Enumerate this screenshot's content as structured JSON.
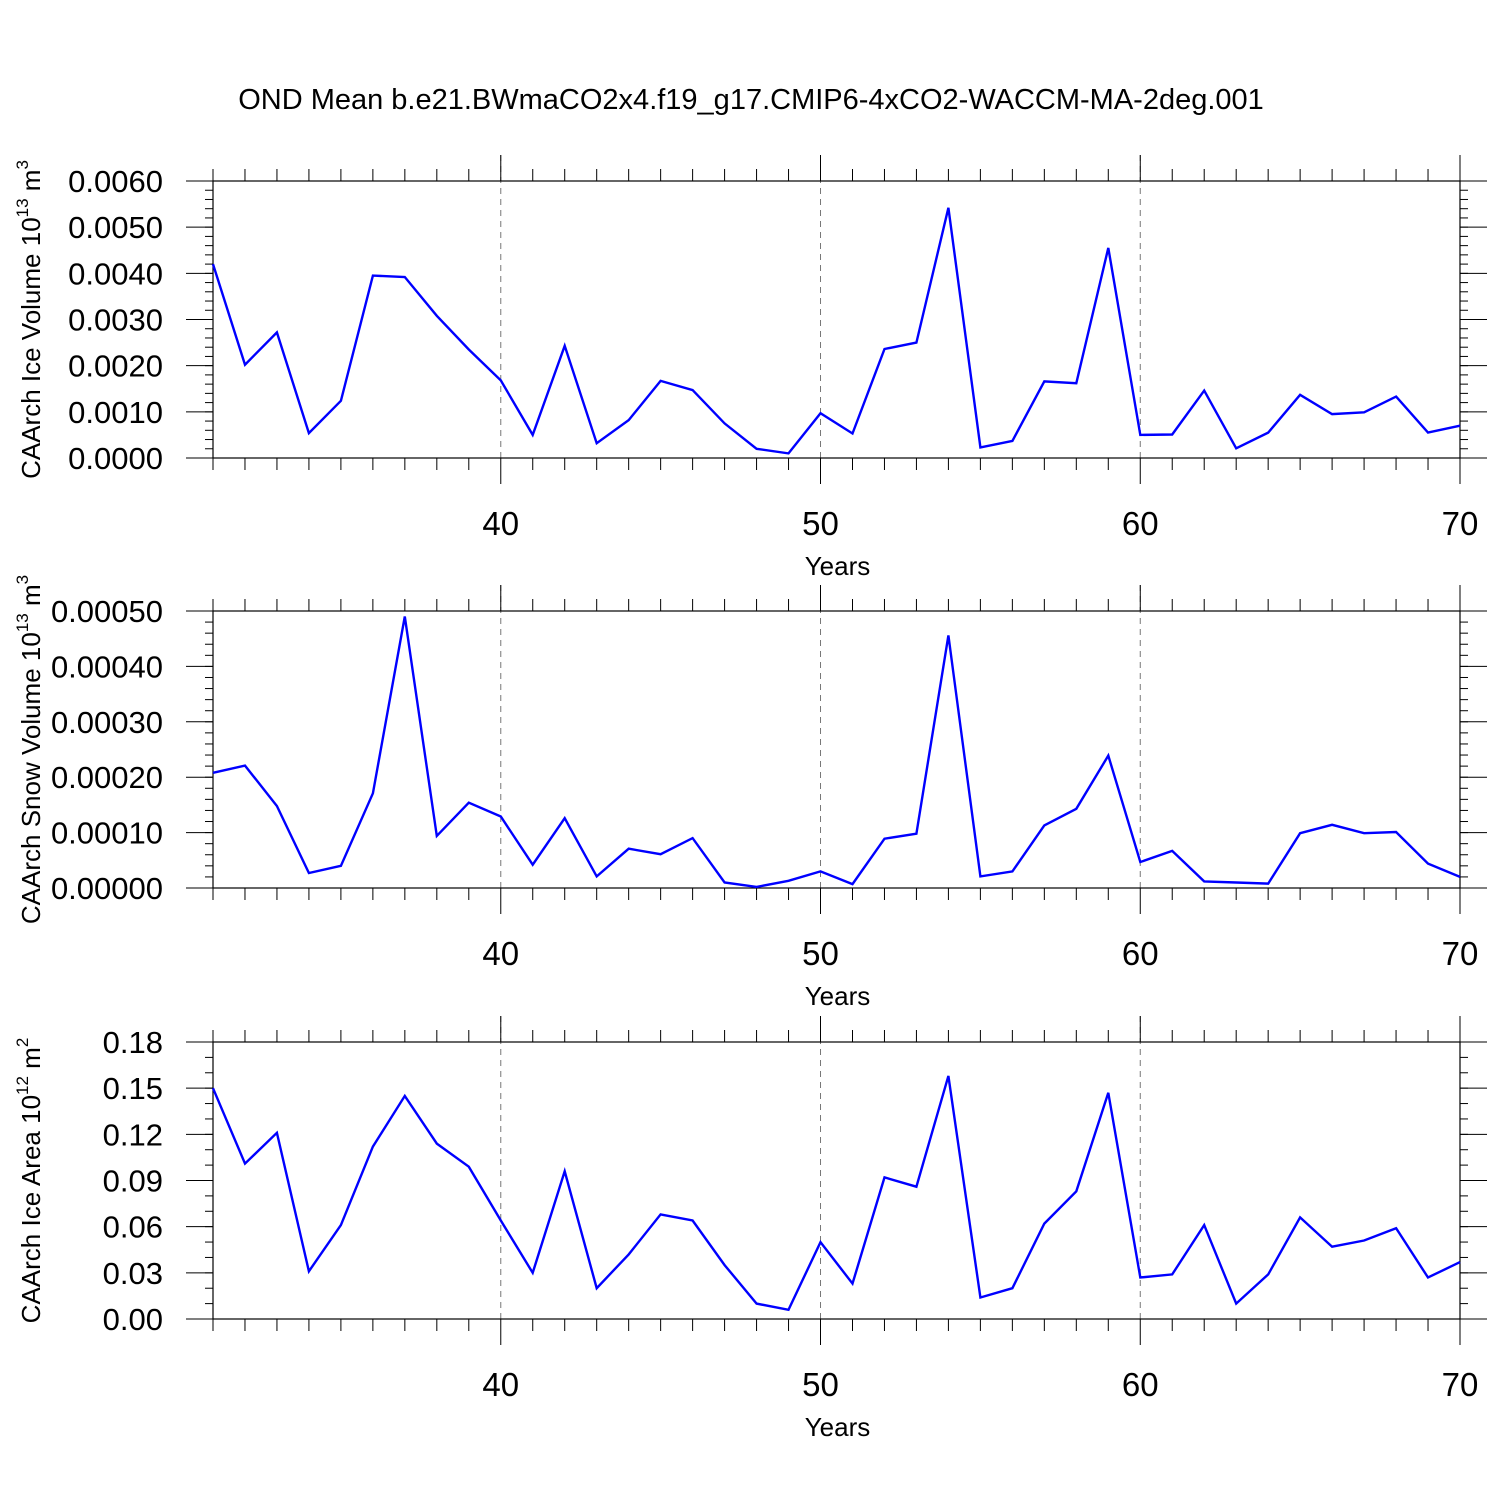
{
  "title": "OND Mean b.e21.BWmaCO2x4.f19_g17.CMIP6-4xCO2-WACCM-MA-2deg.001",
  "colors": {
    "line": "#0000ff",
    "axis": "#000000",
    "grid": "#777777"
  },
  "chart_data": [
    {
      "type": "line",
      "name": "ice-volume",
      "xlabel": "Years",
      "ylabel_main": "CAArch Ice Volume 10",
      "ylabel_sup": "13",
      "ylabel_unit": " m",
      "ylabel_unit_sup": "3",
      "xlim": [
        31,
        70
      ],
      "ylim": [
        0,
        0.006
      ],
      "xticks": [
        40,
        50,
        60,
        70
      ],
      "xtick_labels": [
        "40",
        "50",
        "60",
        "70"
      ],
      "grid_x": [
        40,
        50,
        60
      ],
      "yticks": [
        0,
        0.001,
        0.002,
        0.003,
        0.004,
        0.005,
        0.006
      ],
      "ytick_labels": [
        "0.0000",
        "0.0010",
        "0.0020",
        "0.0030",
        "0.0040",
        "0.0050",
        "0.0060"
      ],
      "minor_step": 0.0002,
      "x": [
        31,
        32,
        33,
        34,
        35,
        36,
        37,
        38,
        39,
        40,
        41,
        42,
        43,
        44,
        45,
        46,
        47,
        48,
        49,
        50,
        51,
        52,
        53,
        54,
        55,
        56,
        57,
        58,
        59,
        60,
        61,
        62,
        63,
        64,
        65,
        66,
        67,
        68,
        69,
        70
      ],
      "values": [
        0.0042,
        0.00202,
        0.00272,
        0.00054,
        0.00124,
        0.00395,
        0.00392,
        0.00308,
        0.00235,
        0.00168,
        0.0005,
        0.00243,
        0.00032,
        0.00082,
        0.00167,
        0.00147,
        0.00075,
        0.0002,
        0.0001,
        0.00097,
        0.00053,
        0.00236,
        0.0025,
        0.00542,
        0.00023,
        0.00037,
        0.00166,
        0.00162,
        0.00455,
        0.0005,
        0.00051,
        0.00146,
        0.00021,
        0.00055,
        0.00137,
        0.00095,
        0.00099,
        0.00133,
        0.00055,
        0.0007
      ]
    },
    {
      "type": "line",
      "name": "snow-volume",
      "xlabel": "Years",
      "ylabel_main": "CAArch Snow Volume 10",
      "ylabel_sup": "13",
      "ylabel_unit": " m",
      "ylabel_unit_sup": "3",
      "xlim": [
        31,
        70
      ],
      "ylim": [
        0,
        0.0005
      ],
      "xticks": [
        40,
        50,
        60,
        70
      ],
      "xtick_labels": [
        "40",
        "50",
        "60",
        "70"
      ],
      "grid_x": [
        40,
        50,
        60
      ],
      "yticks": [
        0,
        0.0001,
        0.0002,
        0.0003,
        0.0004,
        0.0005
      ],
      "ytick_labels": [
        "0.00000",
        "0.00010",
        "0.00020",
        "0.00030",
        "0.00040",
        "0.00050"
      ],
      "minor_step": 2e-05,
      "x": [
        31,
        32,
        33,
        34,
        35,
        36,
        37,
        38,
        39,
        40,
        41,
        42,
        43,
        44,
        45,
        46,
        47,
        48,
        49,
        50,
        51,
        52,
        53,
        54,
        55,
        56,
        57,
        58,
        59,
        60,
        61,
        62,
        63,
        64,
        65,
        66,
        67,
        68,
        69,
        70
      ],
      "values": [
        0.000208,
        0.000221,
        0.000148,
        2.7e-05,
        4e-05,
        0.000171,
        0.00049,
        9.4e-05,
        0.000154,
        0.000129,
        4.2e-05,
        0.000126,
        2.1e-05,
        7.1e-05,
        6.1e-05,
        9e-05,
        1e-05,
        2e-06,
        1.3e-05,
        3e-05,
        7e-06,
        8.9e-05,
        9.8e-05,
        0.000456,
        2.1e-05,
        3e-05,
        0.000113,
        0.000143,
        0.000239,
        4.7e-05,
        6.7e-05,
        1.2e-05,
        1e-05,
        8e-06,
        9.9e-05,
        0.000114,
        9.9e-05,
        0.000101,
        4.4e-05,
        2e-05
      ]
    },
    {
      "type": "line",
      "name": "ice-area",
      "xlabel": "Years",
      "ylabel_main": "CAArch Ice Area 10",
      "ylabel_sup": "12",
      "ylabel_unit": " m",
      "ylabel_unit_sup": "2",
      "xlim": [
        31,
        70
      ],
      "ylim": [
        0,
        0.18
      ],
      "xticks": [
        40,
        50,
        60,
        70
      ],
      "xtick_labels": [
        "40",
        "50",
        "60",
        "70"
      ],
      "grid_x": [
        40,
        50,
        60
      ],
      "yticks": [
        0,
        0.03,
        0.06,
        0.09,
        0.12,
        0.15,
        0.18
      ],
      "ytick_labels": [
        "0.00",
        "0.03",
        "0.06",
        "0.09",
        "0.12",
        "0.15",
        "0.18"
      ],
      "minor_step": 0.01,
      "x": [
        31,
        32,
        33,
        34,
        35,
        36,
        37,
        38,
        39,
        40,
        41,
        42,
        43,
        44,
        45,
        46,
        47,
        48,
        49,
        50,
        51,
        52,
        53,
        54,
        55,
        56,
        57,
        58,
        59,
        60,
        61,
        62,
        63,
        64,
        65,
        66,
        67,
        68,
        69,
        70
      ],
      "values": [
        0.15,
        0.101,
        0.121,
        0.031,
        0.061,
        0.112,
        0.145,
        0.114,
        0.099,
        0.064,
        0.03,
        0.096,
        0.02,
        0.042,
        0.068,
        0.064,
        0.035,
        0.01,
        0.006,
        0.05,
        0.023,
        0.092,
        0.086,
        0.158,
        0.014,
        0.02,
        0.062,
        0.083,
        0.147,
        0.027,
        0.029,
        0.061,
        0.01,
        0.029,
        0.066,
        0.047,
        0.051,
        0.059,
        0.027,
        0.037
      ]
    }
  ]
}
